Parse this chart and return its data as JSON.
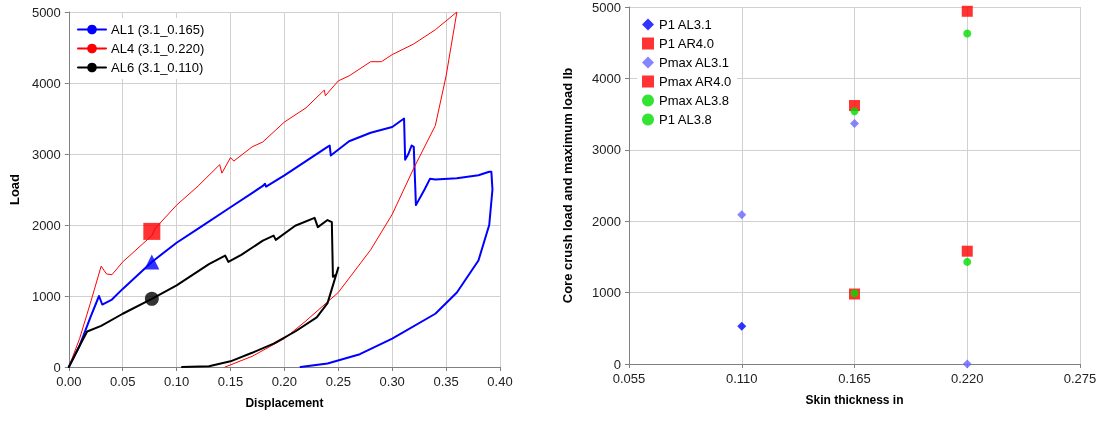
{
  "chart_data": [
    {
      "type": "line",
      "xlabel": "Displacement",
      "ylabel": "Load",
      "xlim": [
        0,
        0.4
      ],
      "ylim": [
        0,
        5000
      ],
      "xticks": [
        {
          "value": 0,
          "label": "0.00"
        },
        {
          "value": 0.05,
          "label": "0.05"
        },
        {
          "value": 0.1,
          "label": "0.10"
        },
        {
          "value": 0.15,
          "label": "0.15"
        },
        {
          "value": 0.2,
          "label": "0.20"
        },
        {
          "value": 0.25,
          "label": "0.25"
        },
        {
          "value": 0.3,
          "label": "0.30"
        },
        {
          "value": 0.35,
          "label": "0.35"
        },
        {
          "value": 0.4,
          "label": "0.40"
        }
      ],
      "yticks": [
        0,
        1000,
        2000,
        3000,
        4000,
        5000
      ],
      "grid": true,
      "legend": "top left",
      "line_style": "solid",
      "series": [
        {
          "name": "AL1 (3.1_0.165)",
          "color": "#0000ff",
          "marker": "none",
          "x": [
            0,
            0.01,
            0.02,
            0.028,
            0.031,
            0.04,
            0.05,
            0.077,
            0.1,
            0.12,
            0.15,
            0.18,
            0.182,
            0.183,
            0.2,
            0.22,
            0.24,
            0.242,
            0.243,
            0.26,
            0.28,
            0.3,
            0.311,
            0.312,
            0.315,
            0.318,
            0.32,
            0.322,
            0.33,
            0.335,
            0.34,
            0.36,
            0.38,
            0.39,
            0.392,
            0.393,
            0.39,
            0.38,
            0.36,
            0.34,
            0.3,
            0.27,
            0.24,
            0.215
          ],
          "values": [
            0,
            300,
            700,
            1000,
            880,
            950,
            1100,
            1480,
            1750,
            1950,
            2250,
            2550,
            2580,
            2540,
            2700,
            2900,
            3100,
            3120,
            2980,
            3180,
            3300,
            3380,
            3500,
            2920,
            3000,
            3120,
            3100,
            2280,
            2500,
            2650,
            2640,
            2660,
            2700,
            2750,
            2750,
            2500,
            2000,
            1500,
            1050,
            750,
            400,
            180,
            50,
            0
          ]
        },
        {
          "name": "AL4 (3.1_0.220)",
          "color": "#ff0000",
          "marker": "none",
          "x": [
            0,
            0.01,
            0.02,
            0.03,
            0.035,
            0.04,
            0.05,
            0.077,
            0.08,
            0.1,
            0.12,
            0.14,
            0.142,
            0.15,
            0.153,
            0.17,
            0.18,
            0.2,
            0.22,
            0.237,
            0.238,
            0.25,
            0.26,
            0.28,
            0.29,
            0.3,
            0.32,
            0.34,
            0.36,
            0.35,
            0.34,
            0.32,
            0.3,
            0.28,
            0.25,
            0.22,
            0.2,
            0.17,
            0.145
          ],
          "values": [
            0,
            400,
            900,
            1420,
            1310,
            1300,
            1480,
            1850,
            1950,
            2280,
            2550,
            2850,
            2730,
            2950,
            2900,
            3100,
            3170,
            3450,
            3650,
            3900,
            3820,
            4030,
            4100,
            4300,
            4300,
            4400,
            4550,
            4750,
            5000,
            4100,
            3400,
            2800,
            2150,
            1650,
            1050,
            650,
            400,
            150,
            0
          ]
        },
        {
          "name": "AL6 (3.1_0.110)",
          "color": "#000000",
          "marker": "none",
          "x": [
            0,
            0.01,
            0.017,
            0.03,
            0.05,
            0.077,
            0.1,
            0.13,
            0.145,
            0.148,
            0.16,
            0.18,
            0.19,
            0.192,
            0.21,
            0.228,
            0.231,
            0.24,
            0.244,
            0.245,
            0.248,
            0.25,
            0.245,
            0.24,
            0.23,
            0.21,
            0.19,
            0.17,
            0.15,
            0.13,
            0.105
          ],
          "values": [
            0,
            300,
            500,
            580,
            750,
            960,
            1150,
            1450,
            1570,
            1480,
            1580,
            1780,
            1850,
            1790,
            1990,
            2100,
            1970,
            2070,
            2040,
            1270,
            1300,
            1400,
            1150,
            900,
            700,
            500,
            330,
            200,
            80,
            10,
            0
          ]
        },
        {
          "type": "scatter",
          "color": "#0000ff",
          "marker": "triangle",
          "x": [
            0.077
          ],
          "values": [
            1480
          ]
        },
        {
          "type": "scatter",
          "color": "#ff0000",
          "marker": "square",
          "x": [
            0.077
          ],
          "values": [
            1910
          ]
        },
        {
          "type": "scatter",
          "color": "#000000",
          "marker": "circle",
          "x": [
            0.077
          ],
          "values": [
            960
          ]
        }
      ]
    },
    {
      "type": "scatter",
      "xlabel": "Skin thickness in",
      "ylabel": "Core crush load and maximum load lb",
      "xlim": [
        0.055,
        0.275
      ],
      "ylim": [
        0,
        5000
      ],
      "xticks": [
        {
          "value": 0.055,
          "label": "0.055"
        },
        {
          "value": 0.11,
          "label": "0.110"
        },
        {
          "value": 0.165,
          "label": "0.165"
        },
        {
          "value": 0.22,
          "label": "0.220"
        },
        {
          "value": 0.275,
          "label": "0.275"
        }
      ],
      "yticks": [
        0,
        1000,
        2000,
        3000,
        4000,
        5000
      ],
      "grid": true,
      "legend": "top left",
      "series": [
        {
          "name": "P1 AL3.1",
          "color": "#0000ff",
          "marker": "diamond",
          "x": [
            0.11
          ],
          "values": [
            530
          ]
        },
        {
          "name": "P1 AR4.0",
          "color": "#ff0000",
          "marker": "square",
          "x": [
            0.165,
            0.22
          ],
          "values": [
            980,
            1580
          ]
        },
        {
          "name": "Pmax AL3.1",
          "color": "#6666ff",
          "marker": "diamond",
          "x": [
            0.11,
            0.165,
            0.22
          ],
          "values": [
            2090,
            3370,
            0
          ]
        },
        {
          "name": "Pmax AR4.0",
          "color": "#ff0000",
          "marker": "square",
          "x": [
            0.165,
            0.22
          ],
          "values": [
            3620,
            4940
          ]
        },
        {
          "name": "Pmax AL3.8",
          "color": "#00dd00",
          "marker": "circle",
          "x": [
            0.165,
            0.22
          ],
          "values": [
            3540,
            4630
          ]
        },
        {
          "name": "P1 AL3.8",
          "color": "#00dd00",
          "marker": "circle",
          "x": [
            0.165,
            0.22
          ],
          "values": [
            990,
            1430
          ]
        }
      ]
    }
  ]
}
